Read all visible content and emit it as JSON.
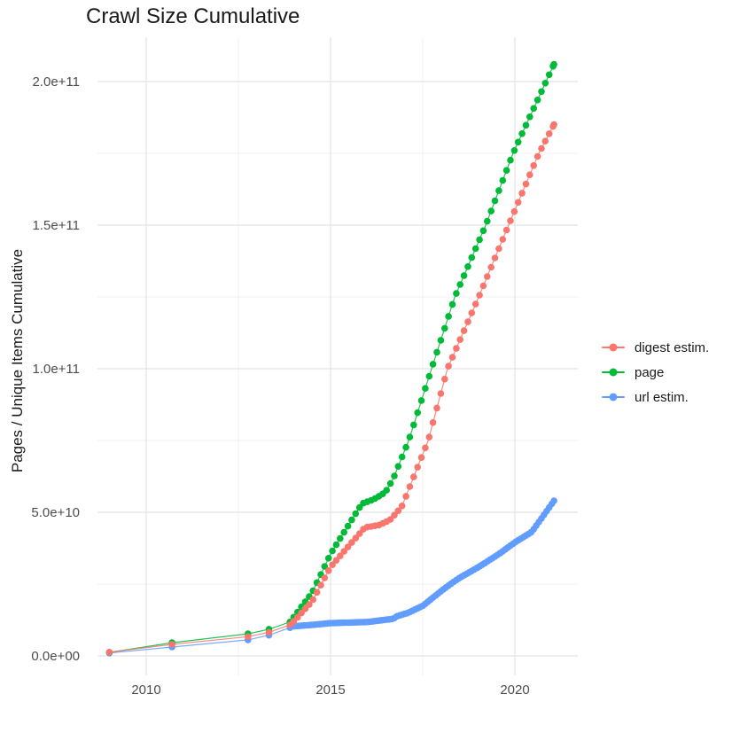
{
  "page": {
    "title": "Crawl Size Cumulative"
  },
  "chart_data": {
    "type": "scatter",
    "title": "Crawl Size Cumulative",
    "xlabel": "",
    "ylabel": "Pages / Unique Items Cumulative",
    "grid": true,
    "legend_position": "right",
    "units": "values in billions (1e9)",
    "x_range_years": [
      2008.7,
      2021.8
    ],
    "y_range_billions": [
      0,
      215
    ],
    "x_ticks": [
      {
        "year": 2010,
        "label": "2010"
      },
      {
        "year": 2015,
        "label": "2015"
      },
      {
        "year": 2020,
        "label": "2020"
      }
    ],
    "x_minor_years": [
      2012.5,
      2017.5
    ],
    "y_ticks": [
      {
        "value_billions": 0,
        "label": "0.0e+00"
      },
      {
        "value_billions": 50,
        "label": "5.0e+10"
      },
      {
        "value_billions": 100,
        "label": "1.0e+11"
      },
      {
        "value_billions": 150,
        "label": "1.5e+11"
      },
      {
        "value_billions": 200,
        "label": "2.0e+11"
      }
    ],
    "y_minor_billions": [
      25,
      75,
      125,
      175
    ],
    "series": [
      {
        "name": "digest estim.",
        "color": "#F8766D",
        "early_points_billions": [
          [
            2009.0,
            1.3
          ],
          [
            2010.7,
            4.0
          ],
          [
            2012.76,
            6.7
          ],
          [
            2013.33,
            8.2
          ],
          [
            2013.9,
            10.8
          ]
        ],
        "anchors_billions": [
          [
            2014.0,
            12
          ],
          [
            2014.5,
            19
          ],
          [
            2015.0,
            31
          ],
          [
            2015.93,
            44.7
          ],
          [
            2016.3,
            45.5
          ],
          [
            2016.61,
            47.3
          ],
          [
            2016.93,
            51.9
          ],
          [
            2017.65,
            75
          ],
          [
            2018.17,
            100
          ],
          [
            2019.02,
            125
          ],
          [
            2019.83,
            150
          ],
          [
            2020.65,
            175
          ],
          [
            2021.06,
            185
          ]
        ],
        "dot_spacing_years": 0.105
      },
      {
        "name": "page",
        "color": "#00BA38",
        "early_points_billions": [
          [
            2009.0,
            1.2
          ],
          [
            2010.7,
            4.6
          ],
          [
            2012.76,
            7.7
          ],
          [
            2013.33,
            9.3
          ],
          [
            2013.9,
            11.8
          ]
        ],
        "anchors_billions": [
          [
            2014.0,
            13.5
          ],
          [
            2014.5,
            22
          ],
          [
            2015.0,
            35.5
          ],
          [
            2015.85,
            53
          ],
          [
            2016.17,
            54.5
          ],
          [
            2016.49,
            57
          ],
          [
            2016.7,
            61.7
          ],
          [
            2017.12,
            75
          ],
          [
            2017.74,
            100
          ],
          [
            2018.37,
            125
          ],
          [
            2019.21,
            150
          ],
          [
            2019.95,
            175
          ],
          [
            2021.06,
            206
          ]
        ],
        "dot_spacing_years": 0.105
      },
      {
        "name": "url estim.",
        "color": "#619CFF",
        "early_points_billions": [
          [
            2009.0,
            1.0
          ],
          [
            2010.7,
            3.1
          ],
          [
            2012.76,
            5.6
          ],
          [
            2013.33,
            7.2
          ],
          [
            2013.9,
            9.8
          ]
        ],
        "anchors_billions": [
          [
            2014.0,
            10.3
          ],
          [
            2014.5,
            10.8
          ],
          [
            2015.0,
            11.4
          ],
          [
            2016.0,
            11.8
          ],
          [
            2016.7,
            12.9
          ],
          [
            2016.81,
            13.9
          ],
          [
            2017.09,
            14.9
          ],
          [
            2017.51,
            17.5
          ],
          [
            2018.05,
            23.1
          ],
          [
            2018.45,
            26.8
          ],
          [
            2019.01,
            30.9
          ],
          [
            2019.57,
            35.5
          ],
          [
            2020.01,
            39.6
          ],
          [
            2020.46,
            43.2
          ],
          [
            2021.06,
            54
          ]
        ],
        "dot_spacing_years": 0.07
      }
    ]
  }
}
